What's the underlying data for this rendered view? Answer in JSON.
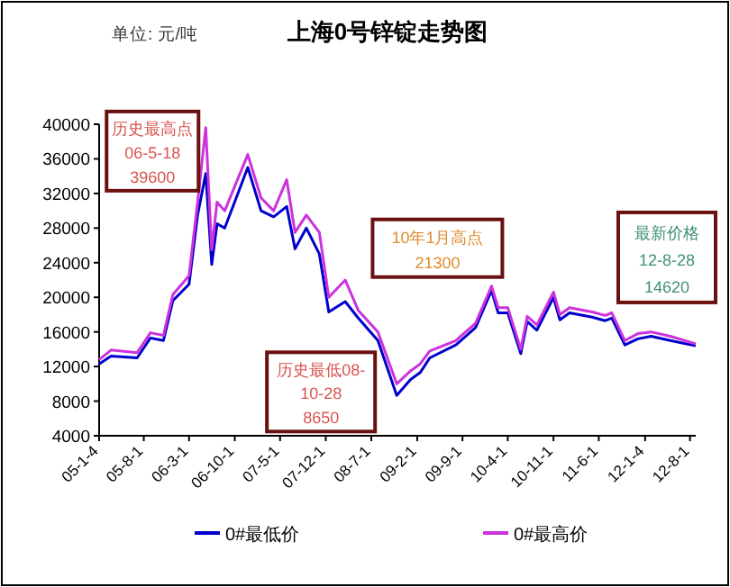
{
  "chart_data": {
    "type": "line",
    "title": "上海0号锌锭走势图",
    "legend": "bottom",
    "marker": "none",
    "line_style": "solid",
    "grid": false,
    "xlim": [
      "2005-01-04",
      "2012-08-28"
    ],
    "ylim": [
      4000,
      40000
    ],
    "yticks": [
      4000,
      8000,
      12000,
      16000,
      20000,
      24000,
      28000,
      32000,
      36000,
      40000
    ],
    "xticks": [
      {
        "value": "2005-01-04",
        "label": "05-1-4"
      },
      {
        "value": "2005-08-01",
        "label": "05-8-1"
      },
      {
        "value": "2006-03-01",
        "label": "06-3-1"
      },
      {
        "value": "2006-10-01",
        "label": "06-10-1"
      },
      {
        "value": "2007-05-01",
        "label": "07-5-1"
      },
      {
        "value": "2007-12-01",
        "label": "07-12-1"
      },
      {
        "value": "2008-07-01",
        "label": "08-7-1"
      },
      {
        "value": "2009-02-01",
        "label": "09-2-1"
      },
      {
        "value": "2009-09-01",
        "label": "09-9-1"
      },
      {
        "value": "2010-04-01",
        "label": "10-4-1"
      },
      {
        "value": "2010-11-01",
        "label": "10-11-1"
      },
      {
        "value": "2011-06-01",
        "label": "11-6-1"
      },
      {
        "value": "2012-01-04",
        "label": "12-1-4"
      },
      {
        "value": "2012-08-01",
        "label": "12-8-1"
      }
    ],
    "x": [
      "2005-01-04",
      "2005-03-01",
      "2005-07-01",
      "2005-09-01",
      "2005-11-01",
      "2005-12-15",
      "2006-03-01",
      "2006-04-10",
      "2006-05-18",
      "2006-06-15",
      "2006-07-10",
      "2006-08-15",
      "2006-12-01",
      "2007-02-01",
      "2007-04-01",
      "2007-06-01",
      "2007-07-10",
      "2007-09-01",
      "2007-11-01",
      "2007-12-15",
      "2008-03-01",
      "2008-05-01",
      "2008-08-01",
      "2008-10-28",
      "2009-01-01",
      "2009-02-15",
      "2009-04-01",
      "2009-08-01",
      "2009-11-01",
      "2010-01-15",
      "2010-02-15",
      "2010-04-01",
      "2010-06-01",
      "2010-07-01",
      "2010-08-15",
      "2010-11-01",
      "2010-12-01",
      "2011-01-15",
      "2011-05-01",
      "2011-07-01",
      "2011-08-01",
      "2011-10-01",
      "2011-12-01",
      "2012-02-01",
      "2012-05-01",
      "2012-08-28"
    ],
    "series": [
      {
        "name": "0#最低价",
        "color": "#0000cc",
        "values": [
          12300,
          13200,
          13000,
          15300,
          15000,
          19600,
          21500,
          29500,
          34300,
          23800,
          28500,
          28000,
          35000,
          30000,
          29300,
          30500,
          25600,
          28000,
          25000,
          18300,
          19500,
          17600,
          15000,
          8650,
          10500,
          11300,
          13000,
          14500,
          16500,
          20800,
          18200,
          18200,
          13500,
          17200,
          16200,
          20000,
          17400,
          18200,
          17700,
          17300,
          17600,
          14500,
          15200,
          15500,
          15000,
          14400
        ]
      },
      {
        "name": "0#最高价",
        "color": "#cc33dd",
        "values": [
          12800,
          13900,
          13600,
          15900,
          15600,
          20300,
          22500,
          31000,
          39600,
          25500,
          31000,
          30000,
          36500,
          31500,
          30000,
          33600,
          27500,
          29500,
          27500,
          20000,
          22000,
          18500,
          16000,
          10000,
          11500,
          12300,
          13800,
          15000,
          17000,
          21300,
          18800,
          18800,
          14000,
          17800,
          16800,
          20600,
          18000,
          18800,
          18300,
          17900,
          18200,
          15000,
          15800,
          16000,
          15500,
          14620
        ]
      }
    ],
    "annotations": [
      "单位: 元/吨",
      {
        "text": "历史最高点\n06-5-18\n39600",
        "x": "2006-05-18",
        "y": 39600
      },
      {
        "text": "历史最低08-\n10-28\n8650",
        "x": "2008-10-28",
        "y": 8650
      },
      {
        "text": "10年1月高点\n21300",
        "x": "2010-01-15",
        "y": 21300
      },
      {
        "text": "最新价格\n12-8-28\n14620",
        "x": "2012-08-28",
        "y": 14620
      }
    ]
  }
}
